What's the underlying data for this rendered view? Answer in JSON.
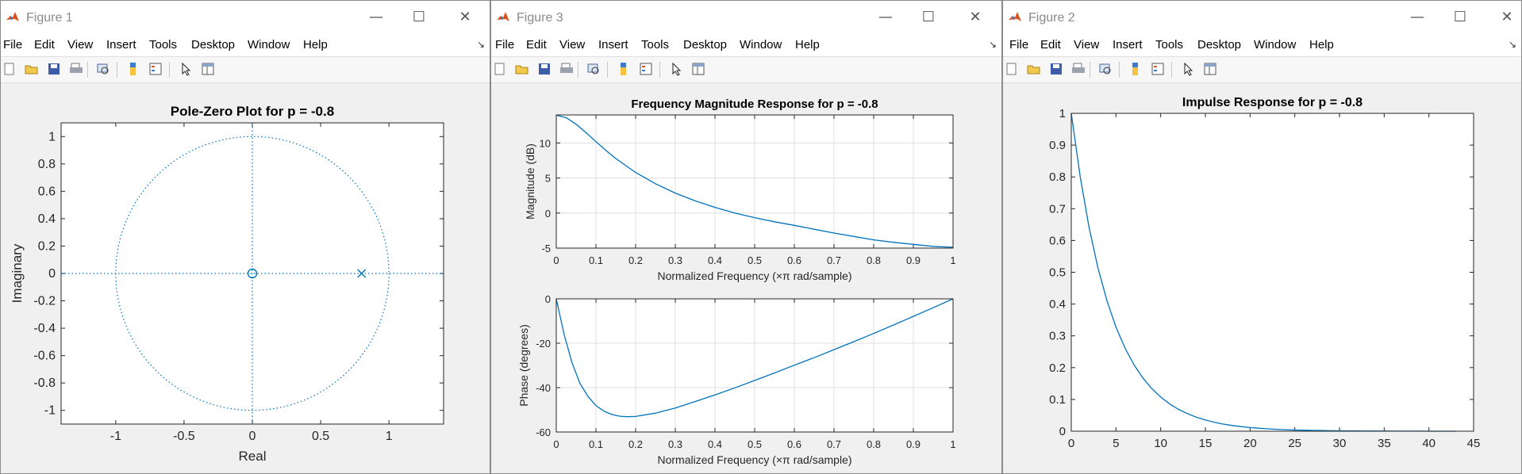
{
  "menu": [
    "File",
    "Edit",
    "View",
    "Insert",
    "Tools",
    "Desktop",
    "Window",
    "Help"
  ],
  "icons": [
    "new-figure-icon",
    "open-file-icon",
    "save-icon",
    "print-icon",
    "print-preview-icon",
    "colorbar-icon",
    "legend-icon",
    "pointer-icon",
    "property-editor-icon"
  ],
  "colors": {
    "line": "#0072bd",
    "axes": "#262626",
    "grid": "#dfdfdf",
    "window_bg": "#f0f0f0"
  },
  "windows": {
    "fig1": {
      "title": "Figure 1"
    },
    "fig3": {
      "title": "Figure 3"
    },
    "fig2": {
      "title": "Figure 2"
    }
  },
  "chart_data": [
    {
      "type": "scatter",
      "title": "Pole-Zero Plot for p = -0.8",
      "xlabel": "Real",
      "ylabel": "Imaginary",
      "xlim": [
        -1.4,
        1.4
      ],
      "ylim": [
        -1.1,
        1.1
      ],
      "xticks": [
        -1,
        -0.5,
        0,
        0.5,
        1
      ],
      "yticks": [
        1,
        0.8,
        0.6,
        0.4,
        0.2,
        0,
        -0.2,
        -0.4,
        -0.6,
        -0.8,
        -1
      ],
      "zeros": [
        {
          "re": 0,
          "im": 0
        }
      ],
      "poles": [
        {
          "re": 0.8,
          "im": 0
        }
      ],
      "unit_circle": true,
      "grid": false
    },
    {
      "type": "line",
      "title": "Frequency Magnitude Response for p = -0.8",
      "xlabel": "Normalized Frequency  (×π rad/sample)",
      "ylabel": "Magnitude (dB)",
      "xlim": [
        0,
        1
      ],
      "ylim": [
        -5,
        14
      ],
      "xticks": [
        0,
        0.1,
        0.2,
        0.3,
        0.4,
        0.5,
        0.6,
        0.7,
        0.8,
        0.9,
        1
      ],
      "yticks": [
        10,
        5,
        0,
        -5
      ],
      "grid": true,
      "x": [
        0,
        0.025,
        0.05,
        0.075,
        0.1,
        0.125,
        0.15,
        0.2,
        0.25,
        0.3,
        0.35,
        0.4,
        0.45,
        0.5,
        0.55,
        0.6,
        0.65,
        0.7,
        0.75,
        0.8,
        0.85,
        0.9,
        0.95,
        1
      ],
      "y": [
        13.98,
        13.6,
        12.68,
        11.47,
        10.19,
        8.94,
        7.78,
        5.79,
        4.18,
        2.85,
        1.74,
        0.81,
        0.01,
        -0.66,
        -1.24,
        -1.75,
        -2.31,
        -2.85,
        -3.34,
        -3.82,
        -4.17,
        -4.47,
        -4.75,
        -4.89
      ]
    },
    {
      "type": "line",
      "xlabel": "Normalized Frequency  (×π rad/sample)",
      "ylabel": "Phase (degrees)",
      "xlim": [
        0,
        1
      ],
      "ylim": [
        -60,
        0
      ],
      "xticks": [
        0,
        0.1,
        0.2,
        0.3,
        0.4,
        0.5,
        0.6,
        0.7,
        0.8,
        0.9,
        1
      ],
      "yticks": [
        0,
        -20,
        -40,
        -60
      ],
      "grid": true,
      "x": [
        0,
        0.02,
        0.04,
        0.06,
        0.08,
        0.1,
        0.12,
        0.14,
        0.16,
        0.18,
        0.2,
        0.25,
        0.3,
        0.35,
        0.4,
        0.45,
        0.5,
        0.55,
        0.6,
        0.65,
        0.7,
        0.75,
        0.8,
        0.85,
        0.9,
        0.95,
        1
      ],
      "y": [
        0,
        -16.2,
        -29.0,
        -38.2,
        -44.0,
        -48.1,
        -50.6,
        -52.1,
        -52.9,
        -53.1,
        -53.0,
        -51.5,
        -49.2,
        -46.3,
        -43.3,
        -40.1,
        -36.8,
        -33.4,
        -29.9,
        -26.5,
        -22.9,
        -19.3,
        -15.6,
        -11.8,
        -7.9,
        -4.0,
        0
      ]
    },
    {
      "type": "line",
      "title": "Impulse Response for p = -0.8",
      "xlim": [
        0,
        45
      ],
      "ylim": [
        0,
        1
      ],
      "xticks": [
        0,
        5,
        10,
        15,
        20,
        25,
        30,
        35,
        40,
        45
      ],
      "yticks": [
        1,
        0.9,
        0.8,
        0.7,
        0.6,
        0.5,
        0.4,
        0.3,
        0.2,
        0.1,
        0
      ],
      "grid": false,
      "x": [
        0,
        1,
        2,
        3,
        4,
        5,
        6,
        7,
        8,
        9,
        10,
        11,
        12,
        13,
        14,
        15,
        16,
        17,
        18,
        19,
        20,
        21,
        22,
        23,
        24,
        25,
        26,
        27,
        28,
        29,
        30,
        31,
        32,
        33,
        34,
        35,
        36,
        37,
        38,
        39,
        40,
        41,
        42,
        43
      ],
      "y": [
        1,
        0.8,
        0.64,
        0.512,
        0.4096,
        0.3277,
        0.2621,
        0.2097,
        0.1678,
        0.1342,
        0.1074,
        0.0859,
        0.0687,
        0.055,
        0.044,
        0.0352,
        0.0281,
        0.0225,
        0.018,
        0.0144,
        0.0115,
        0.0092,
        0.0074,
        0.0059,
        0.0047,
        0.0038,
        0.003,
        0.0024,
        0.0019,
        0.0015,
        0.0012,
        0.001,
        0.0008,
        0.0006,
        0.0005,
        0.0004,
        0.0003,
        0.0003,
        0.0002,
        0.0002,
        0.0001,
        0.0001,
        0.0001,
        0.0001
      ]
    }
  ]
}
